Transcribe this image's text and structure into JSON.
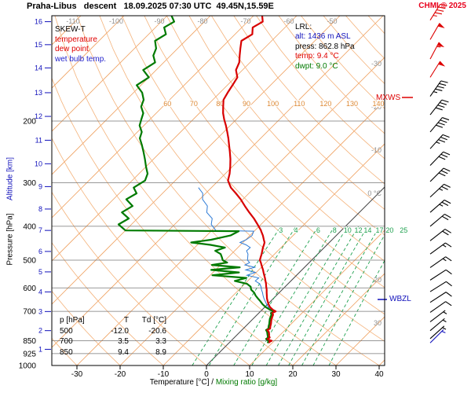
{
  "header": {
    "title": "Praha-Libus   descent   18.09.2025 07:30 UTC  49.45N,15.59E",
    "copyright": "CHMI © 2025"
  },
  "legend": {
    "heading": "SKEW-T",
    "items": [
      {
        "label": "temperature",
        "color": "#e00000"
      },
      {
        "label": "dew point",
        "color": "#e00000"
      },
      {
        "label": "wet bulb temp.",
        "color": "#2222cc"
      }
    ]
  },
  "info_box": {
    "heading": "LRL:",
    "alt": "alt: 1436 m ASL",
    "press": "press: 862.8 hPa",
    "temp": "temp: 9.4 °C",
    "dwpt": "dwpt: 9.0 °C"
  },
  "labels": {
    "mxws": "MXWS",
    "wbzl": "WBZL",
    "xaxis_left": "Temperature [°C]",
    "xaxis_sep": " / ",
    "xaxis_right": "Mixing ratio [g/kg]",
    "yaxis_pressure": "Pressure [hPa]",
    "yaxis_alt": "Altitude [km]"
  },
  "table": {
    "header": {
      "p": "p [hPa]",
      "t": "T",
      "td": "Td [°C]"
    },
    "rows": [
      {
        "p": "500",
        "t": "-12.0",
        "td": "-20.6"
      },
      {
        "p": "700",
        "t": "3.5",
        "td": "3.3"
      },
      {
        "p": "850",
        "t": "9.4",
        "td": "8.9"
      }
    ]
  },
  "axes": {
    "pressure_label_ticks": [
      200,
      300,
      400,
      500,
      600,
      700,
      850,
      925,
      1000
    ],
    "pressure_grid": [
      200,
      300,
      400,
      500,
      600,
      700,
      850,
      925
    ],
    "altitude_ticks": [
      [
        1,
        899
      ],
      [
        2,
        795
      ],
      [
        3,
        701
      ],
      [
        4,
        616
      ],
      [
        5,
        540
      ],
      [
        6,
        472
      ],
      [
        7,
        411
      ],
      [
        8,
        357
      ],
      [
        9,
        308
      ],
      [
        10,
        265
      ],
      [
        11,
        227
      ],
      [
        12,
        194
      ],
      [
        13,
        166
      ],
      [
        14,
        141
      ],
      [
        15,
        121
      ],
      [
        16,
        104
      ]
    ],
    "temp_ticks": [
      -30,
      -20,
      -10,
      0,
      10,
      20,
      30,
      40
    ],
    "isotherm_top_labels": [
      -110,
      -100,
      -90,
      -80,
      -70,
      -60,
      -50
    ],
    "isotherm_right_labels": [
      {
        "t": -30,
        "text": "-30"
      },
      {
        "t": -20,
        "text": "-20"
      },
      {
        "t": -10,
        "text": "-10"
      },
      {
        "t": 0,
        "text": "0 °C"
      },
      {
        "t": 20,
        "text": "20"
      },
      {
        "t": 30,
        "text": "30"
      }
    ],
    "adiabat_labels": [
      60,
      70,
      80,
      90,
      100,
      110,
      120,
      130,
      140
    ]
  },
  "colors": {
    "temperature": "#d80000",
    "dew_point": "#007a00",
    "wet_bulb": "#2e7bd6",
    "isotherm": "#efa263",
    "adiabat": "#f4b27a",
    "mixing_ratio": "#1fa14f",
    "axis_blue": "#1111bb",
    "mxws": "#dd0000",
    "zero_isotherm": "#444444"
  },
  "chart_data": {
    "type": "line",
    "diagram": "skew-t-log-p",
    "title": "Praha-Libus descent 18.09.2025 07:30 UTC 49.45N,15.59E",
    "xlabel": "Temperature [°C] / Mixing ratio [g/kg]",
    "ylabel": "Pressure [hPa]",
    "p_range": [
      100,
      1000
    ],
    "temp_ticks": [
      -30,
      -20,
      -10,
      0,
      10,
      20,
      30,
      40
    ],
    "isotherm_step_c": 10,
    "dry_adiabat_range_c": [
      -40,
      180
    ],
    "dry_adiabat_step_c": 10,
    "mixing_ratio_lines_gkg": [
      3,
      4,
      6,
      8,
      10,
      12,
      14,
      17,
      20,
      25
    ],
    "surface": {
      "alt_m": 1436,
      "press_hpa": 862.8,
      "temp_c": 9.4,
      "dwpt_c": 9.0
    },
    "levels_table": [
      {
        "p_hpa": 500,
        "t_c": -12.0,
        "td_c": -20.6
      },
      {
        "p_hpa": 700,
        "t_c": 3.5,
        "td_c": 3.3
      },
      {
        "p_hpa": 850,
        "t_c": 9.4,
        "td_c": 8.9
      }
    ],
    "series": [
      {
        "name": "temperature",
        "color": "#d80000"
      },
      {
        "name": "dew point",
        "color": "#007a00"
      },
      {
        "name": "wet bulb temp.",
        "color": "#2e7bd6"
      }
    ],
    "sounding_pTtd": [
      [
        100,
        -68,
        -89
      ],
      [
        104,
        -66.5,
        -87
      ],
      [
        108,
        -67.5,
        -88
      ],
      [
        113,
        -66,
        -86
      ],
      [
        118,
        -67,
        -87
      ],
      [
        124,
        -65.5,
        -85
      ],
      [
        130,
        -64,
        -84
      ],
      [
        136,
        -62.5,
        -82
      ],
      [
        143,
        -61.5,
        -83
      ],
      [
        150,
        -59.5,
        -80
      ],
      [
        158,
        -58.8,
        -81
      ],
      [
        166,
        -58.2,
        -78
      ],
      [
        174,
        -57.5,
        -76
      ],
      [
        182,
        -56,
        -75
      ],
      [
        190,
        -54.5,
        -73
      ],
      [
        198,
        -52.8,
        -72
      ],
      [
        206,
        -51,
        -71
      ],
      [
        215,
        -49.2,
        -69
      ],
      [
        224,
        -47.5,
        -68
      ],
      [
        234,
        -45.8,
        -66
      ],
      [
        245,
        -44,
        -64
      ],
      [
        257,
        -42.2,
        -62
      ],
      [
        270,
        -40.5,
        -60
      ],
      [
        283,
        -39,
        -58
      ],
      [
        296,
        -37.8,
        -57
      ],
      [
        310,
        -35.5,
        -58
      ],
      [
        322,
        -33,
        -56
      ],
      [
        335,
        -30.5,
        -57
      ],
      [
        350,
        -28,
        -54
      ],
      [
        365,
        -25.5,
        -55
      ],
      [
        380,
        -23,
        -52
      ],
      [
        395,
        -20.8,
        -53
      ],
      [
        411,
        -18.6,
        -50
      ],
      [
        413,
        -18.4,
        -23.6
      ],
      [
        425,
        -17,
        -24.5
      ],
      [
        437,
        -15.8,
        -28
      ],
      [
        445,
        -15,
        -32
      ],
      [
        452,
        -14.6,
        -27
      ],
      [
        460,
        -14.2,
        -23
      ],
      [
        470,
        -13.6,
        -24.5
      ],
      [
        480,
        -13,
        -22.5
      ],
      [
        490,
        -12.5,
        -21.5
      ],
      [
        500,
        -12,
        -20.6
      ],
      [
        508,
        -11.2,
        -19
      ],
      [
        516,
        -10.5,
        -22
      ],
      [
        524,
        -9.8,
        -15
      ],
      [
        533,
        -9,
        -21
      ],
      [
        542,
        -8.3,
        -14
      ],
      [
        552,
        -7.5,
        -19.5
      ],
      [
        562,
        -6.7,
        -11
      ],
      [
        573,
        -5.9,
        -13
      ],
      [
        584,
        -5.1,
        -9.5
      ],
      [
        595,
        -4.4,
        -8
      ],
      [
        607,
        -3.6,
        -7.2
      ],
      [
        619,
        -2.9,
        -5.8
      ],
      [
        631,
        -2.2,
        -4.8
      ],
      [
        643,
        -1.5,
        -3.6
      ],
      [
        655,
        -0.7,
        -2.4
      ],
      [
        668,
        0.2,
        -1.2
      ],
      [
        681,
        1.2,
        0.2
      ],
      [
        694,
        2.6,
        2
      ],
      [
        700,
        3.5,
        3.3
      ],
      [
        708,
        3.1,
        2.8
      ],
      [
        716,
        3.7,
        3.3
      ],
      [
        726,
        4,
        3.6
      ],
      [
        736,
        4.3,
        3.9
      ],
      [
        748,
        4.8,
        4.4
      ],
      [
        760,
        5.3,
        4.9
      ],
      [
        772,
        5.7,
        5.3
      ],
      [
        784,
        6.2,
        5.8
      ],
      [
        792,
        5.9,
        5.6
      ],
      [
        802,
        6.7,
        6.3
      ],
      [
        812,
        7.2,
        6.8
      ],
      [
        822,
        7.6,
        7.3
      ],
      [
        832,
        8.2,
        7.8
      ],
      [
        840,
        8,
        7.7
      ],
      [
        848,
        9,
        8.5
      ],
      [
        850,
        9.4,
        8.9
      ],
      [
        856,
        9.1,
        8.8
      ],
      [
        862.8,
        9.4,
        9
      ]
    ],
    "winds_p_kt_dir_color": [
      [
        103,
        45,
        32,
        "#dd0000"
      ],
      [
        117,
        50,
        30,
        "#dd0000"
      ],
      [
        133,
        55,
        28,
        "#dd0000"
      ],
      [
        150,
        50,
        32,
        "#dd0000"
      ],
      [
        170,
        45,
        35,
        "#000000"
      ],
      [
        192,
        40,
        38,
        "#000000"
      ],
      [
        215,
        40,
        40,
        "#000000"
      ],
      [
        240,
        35,
        42,
        "#000000"
      ],
      [
        268,
        30,
        44,
        "#000000"
      ],
      [
        298,
        30,
        45,
        "#000000"
      ],
      [
        330,
        25,
        47,
        "#000000"
      ],
      [
        365,
        25,
        49,
        "#000000"
      ],
      [
        400,
        20,
        50,
        "#000000"
      ],
      [
        440,
        20,
        52,
        "#000000"
      ],
      [
        480,
        15,
        54,
        "#000000"
      ],
      [
        525,
        15,
        55,
        "#000000"
      ],
      [
        570,
        10,
        57,
        "#000000"
      ],
      [
        615,
        10,
        58,
        "#000000"
      ],
      [
        660,
        10,
        57,
        "#000000"
      ],
      [
        705,
        10,
        55,
        "#000000"
      ],
      [
        750,
        5,
        53,
        "#000000"
      ],
      [
        795,
        5,
        50,
        "#000000"
      ],
      [
        838,
        5,
        48,
        "#000000"
      ],
      [
        862,
        5,
        45,
        "#1111bb"
      ]
    ]
  }
}
